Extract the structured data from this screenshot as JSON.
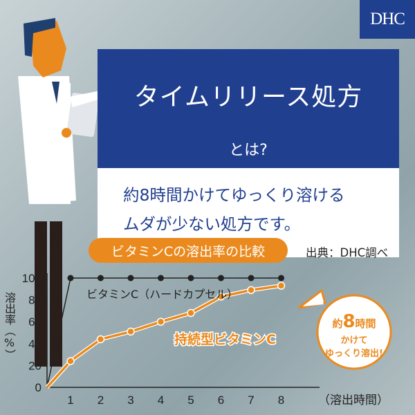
{
  "brand": {
    "logo": "DHC",
    "color": "#213f8f"
  },
  "header": {
    "title": "タイムリリース処方",
    "subtitle": "とは?"
  },
  "description": {
    "line1": "約8時間かけてゆっくり溶ける",
    "line2": "ムダが少ない処方です。"
  },
  "chart_header": {
    "title": "ビタミンCの溶出率の比較",
    "source": "出典：DHC調べ"
  },
  "callout": {
    "prefix": "約",
    "number": "8",
    "suffix": "時間",
    "line2": "かけて",
    "line3": "ゆっくり溶出!"
  },
  "chart_data": {
    "type": "line",
    "title": "ビタミンCの溶出率の比較",
    "xlabel": "（溶出時間）",
    "ylabel": "溶出率（%）",
    "x": [
      0,
      1,
      2,
      3,
      4,
      5,
      6,
      7,
      8
    ],
    "xticks": [
      "1",
      "2",
      "3",
      "4",
      "5",
      "6",
      "7",
      "8"
    ],
    "yticks": [
      "0",
      "20",
      "40",
      "60",
      "80",
      "100"
    ],
    "ylim": [
      0,
      100
    ],
    "grid": false,
    "series": [
      {
        "name": "ビタミンC（ハードカプセル）",
        "color": "#222222",
        "values": [
          0,
          100,
          100,
          100,
          100,
          100,
          100,
          100,
          100
        ]
      },
      {
        "name": "持続型ビタミンC",
        "color": "#ea8a1e",
        "values": [
          0,
          24,
          44,
          51,
          60,
          68,
          83,
          89,
          93
        ]
      }
    ]
  }
}
